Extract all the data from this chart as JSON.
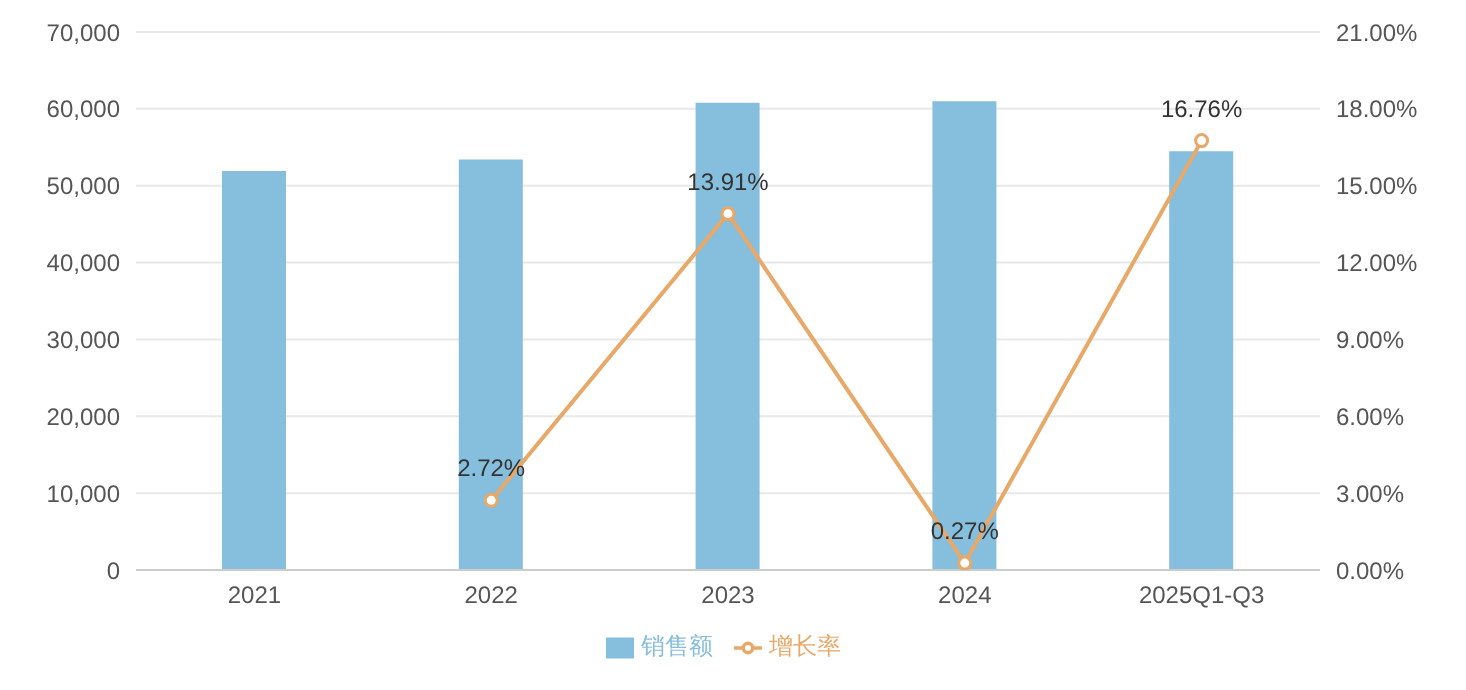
{
  "chart_data": {
    "type": "bar",
    "categories": [
      "2021",
      "2022",
      "2023",
      "2024",
      "2025Q1-Q3"
    ],
    "series": [
      {
        "name": "销售额",
        "color": "#86bedd",
        "values": [
          51900,
          53400,
          60800,
          61000,
          54500
        ]
      },
      {
        "name": "增长率",
        "type": "line",
        "axis": "y2",
        "color": "#e8a868",
        "marker": "circle",
        "values": [
          null,
          2.72,
          13.91,
          0.27,
          16.76
        ],
        "value_labels": [
          null,
          "2.72%",
          "13.91%",
          "0.27%",
          "16.76%"
        ]
      }
    ],
    "ylim": [
      0,
      70000
    ],
    "yticks": [
      {
        "value": 0,
        "label": "0"
      },
      {
        "value": 10000,
        "label": "10,000"
      },
      {
        "value": 20000,
        "label": "20,000"
      },
      {
        "value": 30000,
        "label": "30,000"
      },
      {
        "value": 40000,
        "label": "40,000"
      },
      {
        "value": 50000,
        "label": "50,000"
      },
      {
        "value": 60000,
        "label": "60,000"
      },
      {
        "value": 70000,
        "label": "70,000"
      }
    ],
    "y2lim": [
      0,
      21
    ],
    "y2ticks": [
      {
        "value": 0,
        "label": "0.00%"
      },
      {
        "value": 3,
        "label": "3.00%"
      },
      {
        "value": 6,
        "label": "6.00%"
      },
      {
        "value": 9,
        "label": "9.00%"
      },
      {
        "value": 12,
        "label": "12.00%"
      },
      {
        "value": 15,
        "label": "15.00%"
      },
      {
        "value": 18,
        "label": "18.00%"
      },
      {
        "value": 21,
        "label": "21.00%"
      }
    ],
    "grid": "y",
    "legend": "bottom"
  }
}
